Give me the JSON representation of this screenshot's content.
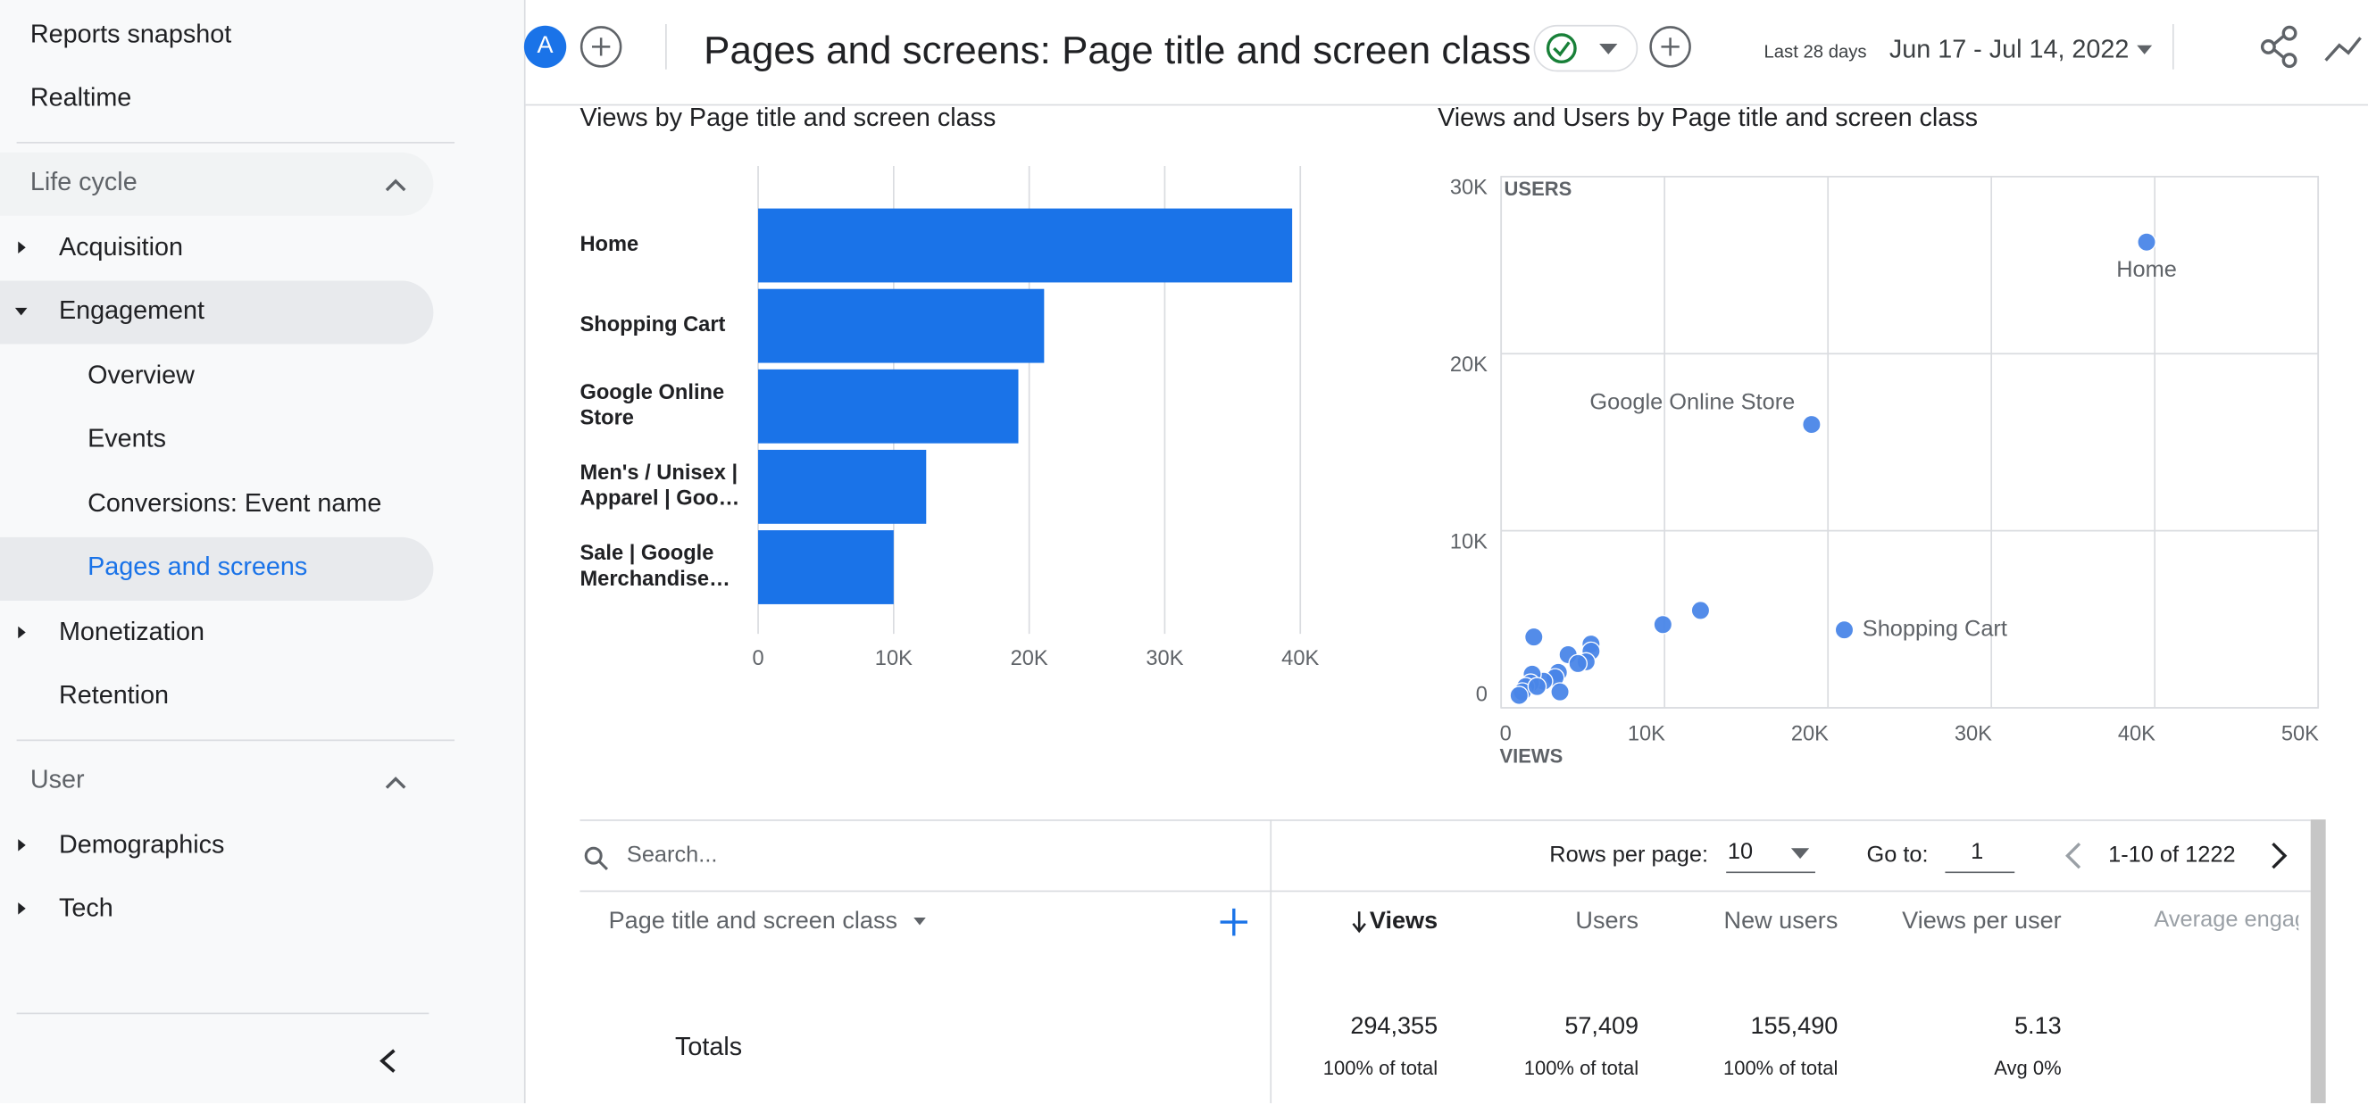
{
  "sidebar": {
    "top": [
      "Reports snapshot",
      "Realtime"
    ],
    "lifecycle": {
      "title": "Life cycle",
      "items": [
        "Acquisition",
        "Engagement",
        "Overview",
        "Events",
        "Conversions: Event name",
        "Pages and screens",
        "Monetization",
        "Retention"
      ]
    },
    "user": {
      "title": "User",
      "items": [
        "Demographics",
        "Tech"
      ]
    }
  },
  "header": {
    "avatar": "A",
    "title": "Pages and screens: Page title and screen class",
    "range_label": "Last 28 days",
    "date_range": "Jun 17 - Jul 14, 2022"
  },
  "bar_chart": {
    "type": "bar",
    "title": "Views by Page title and screen class",
    "categories": [
      "Home",
      "Shopping Cart",
      "Google Online Store",
      "Men's / Unisex | Apparel | Goo…",
      "Sale | Google Merchandise…"
    ],
    "values": [
      39400,
      21100,
      19200,
      12400,
      10000
    ],
    "color": "#1a73e8",
    "xlim": [
      0,
      40000
    ],
    "xticks": [
      0,
      {
        "value": 10000,
        "label": "10K"
      },
      {
        "value": 20000,
        "label": "20K"
      },
      {
        "value": 30000,
        "label": "30K"
      },
      {
        "value": 40000,
        "label": "40K"
      }
    ],
    "grid": true
  },
  "scatter_chart": {
    "type": "scatter",
    "title": "Views and Users by Page title and screen class",
    "x_label": "VIEWS",
    "y_label": "USERS",
    "color": "#4a86e8",
    "x": [
      39500,
      19000,
      21000,
      9900,
      12200,
      2000,
      5500,
      5500,
      5200,
      4100,
      4700,
      3500,
      3300,
      3600,
      2600,
      1900,
      1800,
      1500,
      1300,
      1100,
      2200
    ],
    "y": [
      26300,
      16000,
      4400,
      4700,
      5500,
      4000,
      3600,
      3200,
      2600,
      3000,
      2500,
      2000,
      1700,
      900,
      1500,
      1900,
      1400,
      1200,
      900,
      700,
      1200
    ],
    "labels": [
      "Home",
      "Google Online Store",
      "Shopping Cart",
      null,
      null,
      null,
      null,
      null,
      null,
      null,
      null,
      null,
      null,
      null,
      null,
      null,
      null,
      null,
      null,
      null,
      null
    ],
    "xlim": [
      0,
      50000
    ],
    "ylim": [
      0,
      30000
    ],
    "xticks": [
      0,
      {
        "value": 10000,
        "label": "10K"
      },
      {
        "value": 20000,
        "label": "20K"
      },
      {
        "value": 30000,
        "label": "30K"
      },
      {
        "value": 40000,
        "label": "40K"
      },
      {
        "value": 50000,
        "label": "50K"
      }
    ],
    "yticks": [
      0,
      {
        "value": 10000,
        "label": "10K"
      },
      {
        "value": 20000,
        "label": "20K"
      },
      {
        "value": 30000,
        "label": "30K"
      }
    ],
    "grid": true
  },
  "table": {
    "search": "Search...",
    "rows_per_page_label": "Rows per page:",
    "rows_per_page": "10",
    "goto_label": "Go to:",
    "goto": "1",
    "pagination": "1-10 of 1222",
    "columns": [
      "Page title and screen class",
      "Views",
      "Users",
      "New users",
      "Views per user",
      "Average engagement time"
    ],
    "totals": {
      "label": "Totals",
      "values": [
        "294,355",
        "57,409",
        "155,490",
        "5.13"
      ],
      "sub": [
        "100% of total",
        "100% of total",
        "100% of total",
        "Avg 0%"
      ]
    }
  }
}
